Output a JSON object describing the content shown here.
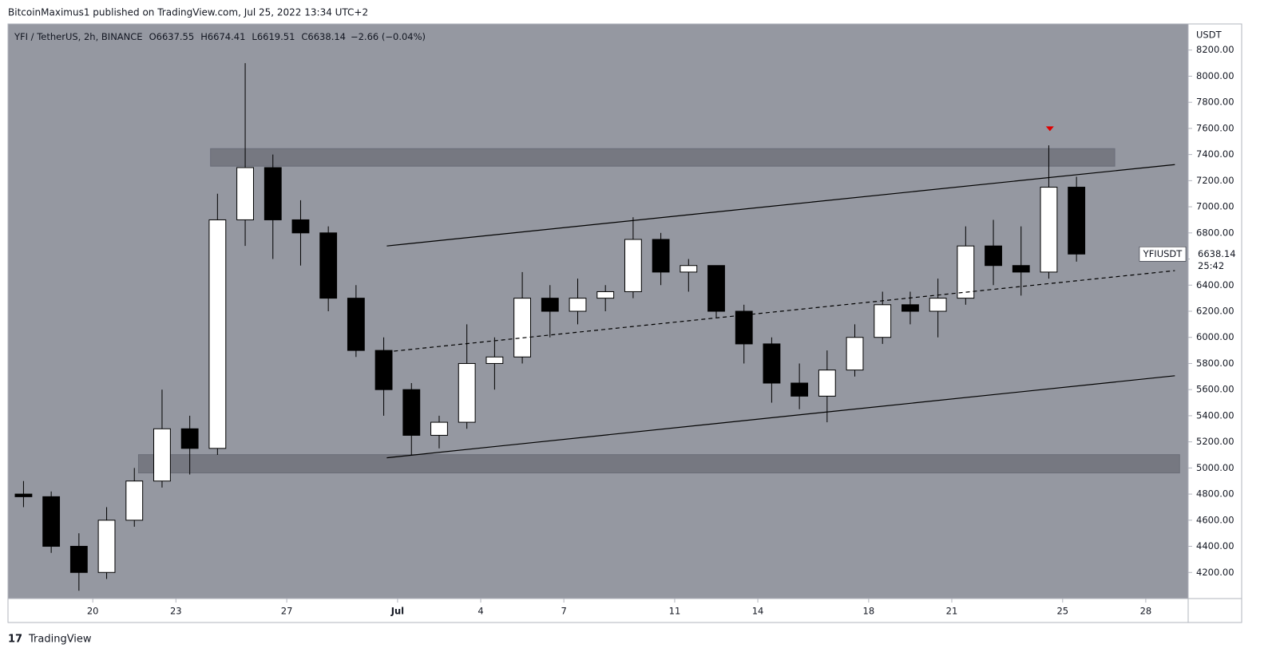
{
  "published": "BitcoinMaximus1 published on TradingView.com, Jul 25, 2022 13:34 UTC+2",
  "footer": "TradingView",
  "chart_data": {
    "type": "candlestick",
    "title": "YFI / TetherUS, 2h, BINANCE",
    "ohlc": [
      {
        "label": "O",
        "value": "6637.55"
      },
      {
        "label": "H",
        "value": "6674.41"
      },
      {
        "label": "L",
        "value": "6619.51"
      },
      {
        "label": "C",
        "value": "6638.14"
      }
    ],
    "change": "−2.66 (−0.04%)",
    "y_unit": "USDT",
    "symbol": "YFIUSDT",
    "last_price": 6638.14,
    "countdown": "25:42",
    "up_color": "#ffffff",
    "down_color": "#000000",
    "background": "#9598a1",
    "x": [
      17,
      18,
      19,
      20,
      21,
      22,
      23,
      24,
      25,
      26,
      27,
      28,
      29,
      30,
      31,
      32,
      33,
      34,
      35,
      36,
      37,
      38,
      39,
      40,
      41,
      42,
      43,
      44,
      45,
      46,
      47,
      48,
      49,
      50,
      51,
      52,
      53,
      54,
      55
    ],
    "open": [
      4800,
      4780,
      4400,
      4200,
      4600,
      4900,
      5300,
      5150,
      6900,
      7300,
      6900,
      6800,
      6300,
      5900,
      5600,
      5250,
      5350,
      5800,
      5850,
      6300,
      6200,
      6300,
      6350,
      6750,
      6500,
      6550,
      6200,
      5950,
      5650,
      5550,
      5750,
      6000,
      6250,
      6200,
      6300,
      6700,
      6550,
      6500,
      7150
    ],
    "high": [
      4900,
      4820,
      4500,
      4700,
      5000,
      5600,
      5400,
      7100,
      8100,
      7400,
      7050,
      6850,
      6400,
      6000,
      5650,
      5400,
      6100,
      6000,
      6500,
      6400,
      6450,
      6400,
      6920,
      6800,
      6600,
      6550,
      6250,
      6000,
      5800,
      5900,
      6100,
      6350,
      6350,
      6450,
      6850,
      6900,
      6850,
      7470,
      7230
    ],
    "low": [
      4700,
      4350,
      4060,
      4150,
      4550,
      4850,
      4950,
      5100,
      6700,
      6600,
      6550,
      6200,
      5850,
      5400,
      5100,
      5150,
      5300,
      5600,
      5800,
      6000,
      6100,
      6200,
      6300,
      6400,
      6350,
      6150,
      5800,
      5500,
      5450,
      5350,
      5700,
      5950,
      6100,
      6000,
      6250,
      6400,
      6320,
      6450,
      6580
    ],
    "close": [
      4780,
      4400,
      4200,
      4600,
      4900,
      5300,
      5150,
      6900,
      7300,
      6900,
      6800,
      6300,
      5900,
      5600,
      5250,
      5350,
      5800,
      5850,
      6300,
      6200,
      6300,
      6350,
      6750,
      6500,
      6550,
      6200,
      5950,
      5650,
      5550,
      5750,
      6000,
      6250,
      6200,
      6300,
      6700,
      6550,
      6500,
      7150,
      6638.14
    ],
    "xlim": [
      16.94,
      59.53
    ],
    "xticks": [
      20,
      23,
      27,
      {
        "value": 31,
        "label": "Jul"
      },
      {
        "value": 34,
        "label": "4"
      },
      {
        "value": 37,
        "label": "7"
      },
      {
        "value": 41,
        "label": "11"
      },
      {
        "value": 44,
        "label": "14"
      },
      {
        "value": 48,
        "label": "18"
      },
      {
        "value": 51,
        "label": "21"
      },
      {
        "value": 55,
        "label": "25"
      },
      {
        "value": 58,
        "label": "28"
      }
    ],
    "ylim": [
      4000,
      8400
    ],
    "yticks": [
      {
        "value": 4200,
        "label": "4200.00"
      },
      {
        "value": 4400,
        "label": "4400.00"
      },
      {
        "value": 4600,
        "label": "4600.00"
      },
      {
        "value": 4800,
        "label": "4800.00"
      },
      {
        "value": 5000,
        "label": "5000.00"
      },
      {
        "value": 5200,
        "label": "5200.00"
      },
      {
        "value": 5400,
        "label": "5400.00"
      },
      {
        "value": 5600,
        "label": "5600.00"
      },
      {
        "value": 5800,
        "label": "5800.00"
      },
      {
        "value": 6000,
        "label": "6000.00"
      },
      {
        "value": 6200,
        "label": "6200.00"
      },
      {
        "value": 6400,
        "label": "6400.00"
      },
      {
        "value": 6600,
        "label": "6600.00"
      },
      {
        "value": 6800,
        "label": "6800.00"
      },
      {
        "value": 7000,
        "label": "7000.00"
      },
      {
        "value": 7200,
        "label": "7200.00"
      },
      {
        "value": 7400,
        "label": "7400.00"
      },
      {
        "value": 7600,
        "label": "7600.00"
      },
      {
        "value": 7800,
        "label": "7800.00"
      },
      {
        "value": 8000,
        "label": "8000.00"
      },
      {
        "value": 8200,
        "label": "8200.00"
      }
    ],
    "zones": [
      {
        "x": [
          24.25,
          56.88
        ],
        "y": [
          7311,
          7445
        ]
      },
      {
        "x": [
          21.65,
          59.22
        ],
        "y": [
          4962,
          5102
        ]
      }
    ],
    "trendlines": [
      {
        "x": [
          30.61,
          59.05
        ],
        "y": [
          6700,
          7323
        ],
        "dashed": false
      },
      {
        "x": [
          30.61,
          59.05
        ],
        "y": [
          5889,
          6511
        ],
        "dashed": true
      },
      {
        "x": [
          30.61,
          59.05
        ],
        "y": [
          5078,
          5706
        ],
        "dashed": false
      }
    ],
    "marker": {
      "x": 54.54,
      "y": 7597,
      "color": "#e00000"
    }
  }
}
